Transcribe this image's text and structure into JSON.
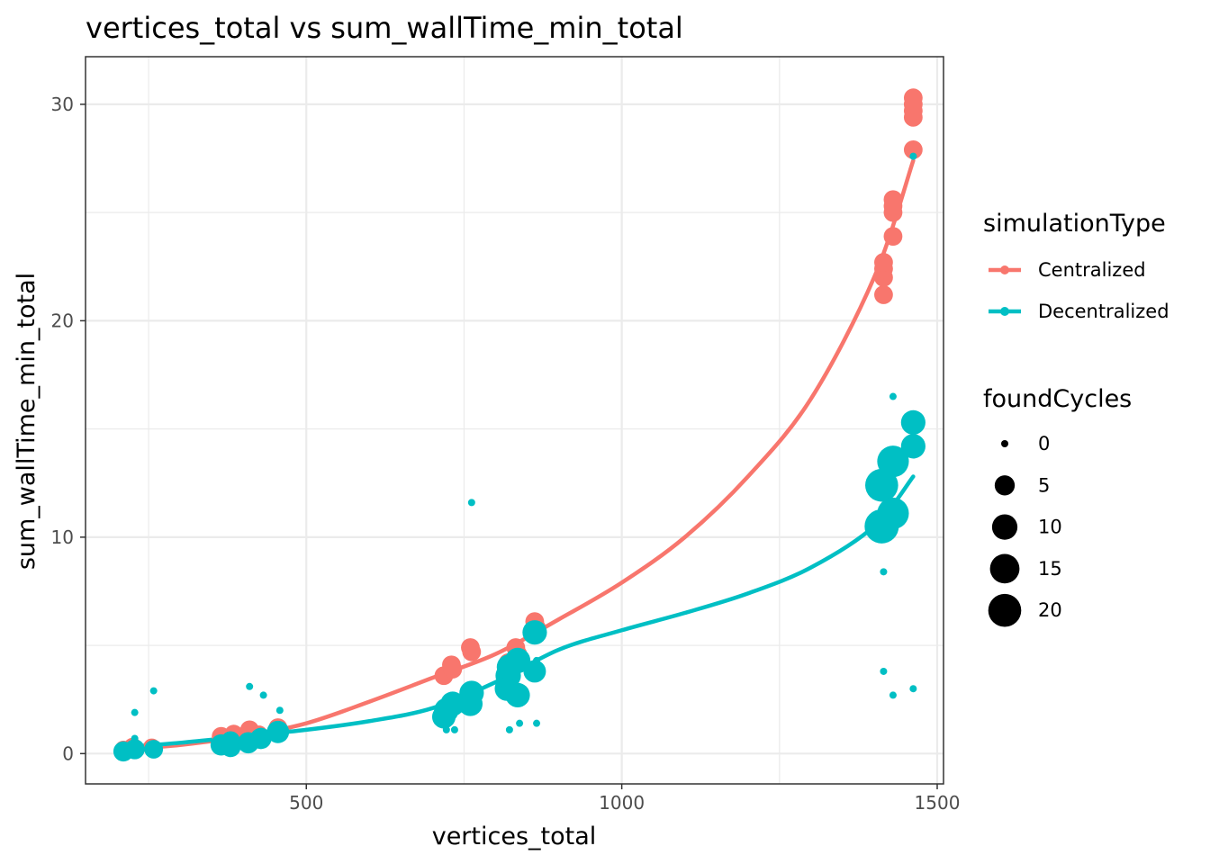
{
  "chart_data": {
    "type": "scatter",
    "title": "vertices_total  vs  sum_wallTime_min_total",
    "xlabel": "vertices_total",
    "ylabel": "sum_wallTime_min_total",
    "xlim": [
      150,
      1510
    ],
    "ylim": [
      -1.4,
      32.2
    ],
    "x_ticks": [
      500,
      1000,
      1500
    ],
    "y_ticks": [
      0,
      10,
      20,
      30
    ],
    "grid": true,
    "legend_position": "right",
    "color_legend": {
      "title": "simulationType",
      "entries": [
        {
          "label": "Centralized",
          "color": "#F8766D"
        },
        {
          "label": "Decentralized",
          "color": "#00BFC4"
        }
      ]
    },
    "size_legend": {
      "title": "foundCycles",
      "values": [
        0,
        5,
        10,
        15,
        20
      ]
    },
    "series": [
      {
        "name": "Centralized",
        "color": "#F8766D",
        "points": [
          {
            "x": 210,
            "y": 0.2,
            "s": 3
          },
          {
            "x": 225,
            "y": 0.3,
            "s": 4
          },
          {
            "x": 255,
            "y": 0.3,
            "s": 3
          },
          {
            "x": 365,
            "y": 0.8,
            "s": 4
          },
          {
            "x": 385,
            "y": 0.9,
            "s": 4
          },
          {
            "x": 410,
            "y": 1.1,
            "s": 4
          },
          {
            "x": 425,
            "y": 0.9,
            "s": 3
          },
          {
            "x": 455,
            "y": 1.2,
            "s": 4
          },
          {
            "x": 718,
            "y": 3.6,
            "s": 4
          },
          {
            "x": 730,
            "y": 4.1,
            "s": 4
          },
          {
            "x": 732,
            "y": 3.9,
            "s": 4
          },
          {
            "x": 760,
            "y": 4.9,
            "s": 4
          },
          {
            "x": 762,
            "y": 4.7,
            "s": 4
          },
          {
            "x": 820,
            "y": 4.2,
            "s": 4
          },
          {
            "x": 832,
            "y": 4.9,
            "s": 4
          },
          {
            "x": 835,
            "y": 4.6,
            "s": 4
          },
          {
            "x": 862,
            "y": 6.1,
            "s": 4
          },
          {
            "x": 865,
            "y": 5.8,
            "s": 4
          },
          {
            "x": 1415,
            "y": 21.2,
            "s": 4
          },
          {
            "x": 1415,
            "y": 22.0,
            "s": 4
          },
          {
            "x": 1415,
            "y": 22.4,
            "s": 4
          },
          {
            "x": 1415,
            "y": 22.7,
            "s": 4
          },
          {
            "x": 1430,
            "y": 23.9,
            "s": 4
          },
          {
            "x": 1430,
            "y": 25.0,
            "s": 4
          },
          {
            "x": 1430,
            "y": 25.3,
            "s": 4
          },
          {
            "x": 1430,
            "y": 25.6,
            "s": 4
          },
          {
            "x": 1462,
            "y": 27.9,
            "s": 4
          },
          {
            "x": 1462,
            "y": 29.4,
            "s": 4
          },
          {
            "x": 1462,
            "y": 29.7,
            "s": 4
          },
          {
            "x": 1462,
            "y": 30.0,
            "s": 4
          },
          {
            "x": 1462,
            "y": 30.3,
            "s": 4
          }
        ],
        "fit": [
          {
            "x": 210,
            "y": 0.2
          },
          {
            "x": 300,
            "y": 0.4
          },
          {
            "x": 400,
            "y": 0.8
          },
          {
            "x": 500,
            "y": 1.4
          },
          {
            "x": 600,
            "y": 2.4
          },
          {
            "x": 700,
            "y": 3.5
          },
          {
            "x": 800,
            "y": 4.6
          },
          {
            "x": 900,
            "y": 6.2
          },
          {
            "x": 1000,
            "y": 7.9
          },
          {
            "x": 1100,
            "y": 10.0
          },
          {
            "x": 1200,
            "y": 12.8
          },
          {
            "x": 1300,
            "y": 16.4
          },
          {
            "x": 1400,
            "y": 22.0
          },
          {
            "x": 1462,
            "y": 27.4
          }
        ]
      },
      {
        "name": "Decentralized",
        "color": "#00BFC4",
        "points": [
          {
            "x": 210,
            "y": 0.1,
            "s": 5
          },
          {
            "x": 228,
            "y": 0.2,
            "s": 5
          },
          {
            "x": 228,
            "y": 0.7,
            "s": 0
          },
          {
            "x": 228,
            "y": 1.9,
            "s": 0
          },
          {
            "x": 258,
            "y": 0.2,
            "s": 4
          },
          {
            "x": 258,
            "y": 2.9,
            "s": 0
          },
          {
            "x": 365,
            "y": 0.4,
            "s": 6
          },
          {
            "x": 380,
            "y": 0.3,
            "s": 5
          },
          {
            "x": 380,
            "y": 0.6,
            "s": 4
          },
          {
            "x": 408,
            "y": 0.5,
            "s": 6
          },
          {
            "x": 410,
            "y": 3.1,
            "s": 0
          },
          {
            "x": 428,
            "y": 0.7,
            "s": 6
          },
          {
            "x": 432,
            "y": 2.7,
            "s": 0
          },
          {
            "x": 455,
            "y": 1.0,
            "s": 7
          },
          {
            "x": 458,
            "y": 2.0,
            "s": 0
          },
          {
            "x": 718,
            "y": 1.7,
            "s": 8
          },
          {
            "x": 722,
            "y": 2.0,
            "s": 9
          },
          {
            "x": 722,
            "y": 1.1,
            "s": 0
          },
          {
            "x": 732,
            "y": 2.3,
            "s": 9
          },
          {
            "x": 735,
            "y": 1.1,
            "s": 0
          },
          {
            "x": 760,
            "y": 2.3,
            "s": 9
          },
          {
            "x": 762,
            "y": 2.8,
            "s": 9
          },
          {
            "x": 762,
            "y": 11.6,
            "s": 0
          },
          {
            "x": 818,
            "y": 3.0,
            "s": 9
          },
          {
            "x": 820,
            "y": 3.6,
            "s": 10
          },
          {
            "x": 822,
            "y": 4.0,
            "s": 10
          },
          {
            "x": 822,
            "y": 1.1,
            "s": 0
          },
          {
            "x": 835,
            "y": 2.7,
            "s": 9
          },
          {
            "x": 835,
            "y": 4.3,
            "s": 10
          },
          {
            "x": 838,
            "y": 1.4,
            "s": 0
          },
          {
            "x": 862,
            "y": 3.8,
            "s": 7
          },
          {
            "x": 862,
            "y": 5.6,
            "s": 9
          },
          {
            "x": 865,
            "y": 4.3,
            "s": 0
          },
          {
            "x": 865,
            "y": 1.4,
            "s": 0
          },
          {
            "x": 1412,
            "y": 10.5,
            "s": 22
          },
          {
            "x": 1412,
            "y": 12.4,
            "s": 20
          },
          {
            "x": 1415,
            "y": 8.4,
            "s": 0
          },
          {
            "x": 1415,
            "y": 3.8,
            "s": 0
          },
          {
            "x": 1430,
            "y": 11.1,
            "s": 18
          },
          {
            "x": 1430,
            "y": 13.5,
            "s": 18
          },
          {
            "x": 1430,
            "y": 16.5,
            "s": 0
          },
          {
            "x": 1430,
            "y": 2.7,
            "s": 0
          },
          {
            "x": 1462,
            "y": 14.2,
            "s": 9
          },
          {
            "x": 1462,
            "y": 15.3,
            "s": 9
          },
          {
            "x": 1462,
            "y": 27.6,
            "s": 0
          },
          {
            "x": 1462,
            "y": 3.0,
            "s": 0
          }
        ],
        "fit": [
          {
            "x": 210,
            "y": 0.3
          },
          {
            "x": 300,
            "y": 0.5
          },
          {
            "x": 400,
            "y": 0.8
          },
          {
            "x": 500,
            "y": 1.1
          },
          {
            "x": 600,
            "y": 1.5
          },
          {
            "x": 700,
            "y": 2.1
          },
          {
            "x": 800,
            "y": 3.3
          },
          {
            "x": 900,
            "y": 4.8
          },
          {
            "x": 1000,
            "y": 5.7
          },
          {
            "x": 1100,
            "y": 6.5
          },
          {
            "x": 1200,
            "y": 7.4
          },
          {
            "x": 1300,
            "y": 8.6
          },
          {
            "x": 1400,
            "y": 10.5
          },
          {
            "x": 1462,
            "y": 12.8
          }
        ]
      }
    ]
  }
}
